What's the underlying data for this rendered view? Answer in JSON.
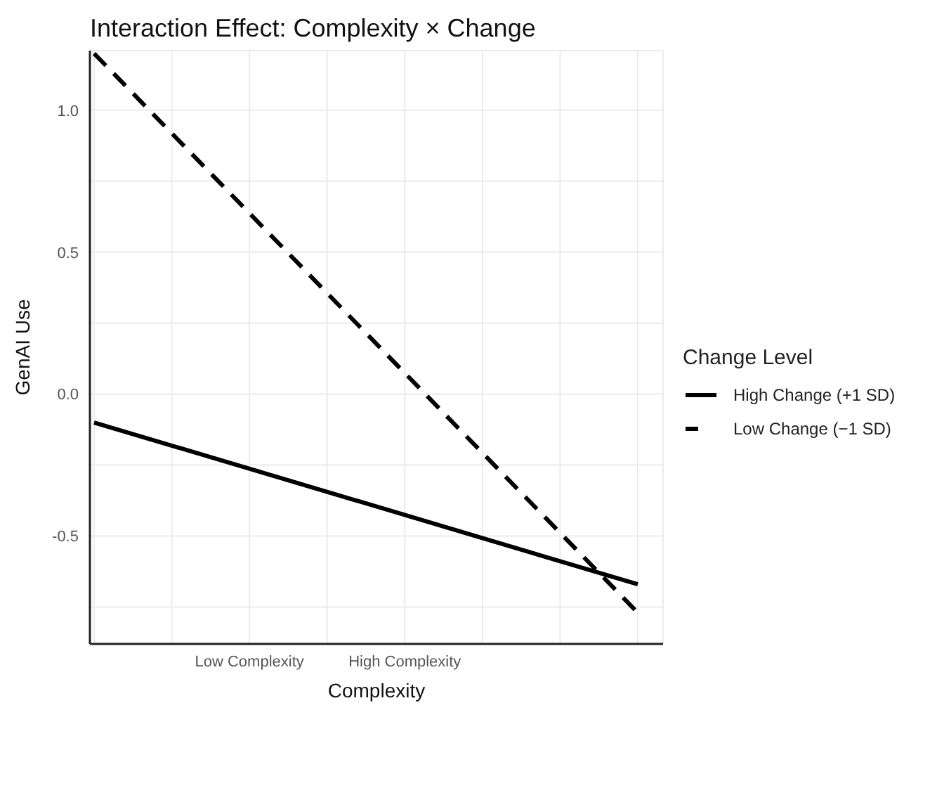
{
  "chart_data": {
    "type": "line",
    "title": "Interaction Effect: Complexity × Change",
    "xlabel": "Complexity",
    "ylabel": "GenAI Use",
    "legend_title": "Change Level",
    "categories": [
      null,
      null,
      "Low Complexity",
      null,
      "High Complexity",
      null,
      null,
      null
    ],
    "series": [
      {
        "name": "High Change (+1 SD)",
        "color": "#000000",
        "line_style": "solid",
        "values": [
          -0.1,
          null,
          null,
          null,
          null,
          null,
          null,
          -0.67
        ]
      },
      {
        "name": "Low Change (−1 SD)",
        "color": "#000000",
        "line_style": "dashed",
        "values": [
          1.2,
          null,
          null,
          null,
          null,
          null,
          null,
          -0.77
        ]
      }
    ],
    "ylim": [
      -0.88,
      1.21
    ],
    "yticks": [
      {
        "value": -0.75,
        "label": null
      },
      {
        "value": -0.5,
        "label": "-0.5"
      },
      {
        "value": -0.25,
        "label": null
      },
      {
        "value": 0,
        "label": "0.0"
      },
      {
        "value": 0.25,
        "label": null
      },
      {
        "value": 0.5,
        "label": "0.5"
      },
      {
        "value": 0.75,
        "label": null
      },
      {
        "value": 1,
        "label": "1.0"
      }
    ],
    "grid": true,
    "legend": "right",
    "marker": "none"
  }
}
